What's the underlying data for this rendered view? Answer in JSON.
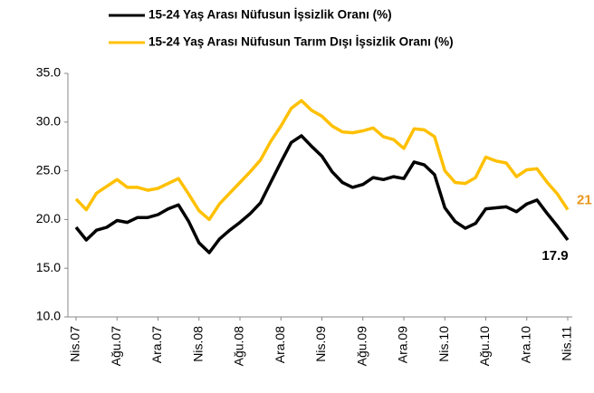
{
  "chart_data": {
    "type": "line",
    "categories": [
      "Nis.07",
      null,
      null,
      null,
      "Ağu.07",
      null,
      null,
      null,
      "Ara.07",
      null,
      null,
      null,
      "Nis.08",
      null,
      null,
      null,
      "Ağu.08",
      null,
      null,
      null,
      "Ara.08",
      null,
      null,
      null,
      "Nis.09",
      null,
      null,
      null,
      "Ağu.09",
      null,
      null,
      null,
      "Ara.09",
      null,
      null,
      null,
      "Nis.10",
      null,
      null,
      null,
      "Ağu.10",
      null,
      null,
      null,
      "Ara.10",
      null,
      null,
      null,
      "Nis.11"
    ],
    "series": [
      {
        "name": "15-24 Yaş Arası Nüfusun İşsizlik Oranı (%)",
        "color": "#000000",
        "label_color": "#000000",
        "values": [
          19.2,
          17.9,
          18.9,
          19.2,
          19.9,
          19.7,
          20.2,
          20.2,
          20.5,
          21.1,
          21.5,
          19.8,
          17.6,
          16.6,
          18.0,
          18.9,
          19.7,
          20.6,
          21.7,
          23.8,
          25.9,
          27.9,
          28.6,
          27.5,
          26.5,
          24.9,
          23.8,
          23.3,
          23.6,
          24.3,
          24.1,
          24.4,
          24.2,
          25.9,
          25.6,
          24.6,
          21.2,
          19.8,
          19.1,
          19.6,
          21.1,
          21.2,
          21.3,
          20.8,
          21.6,
          22.0,
          20.6,
          19.3,
          17.9
        ]
      },
      {
        "name": "15-24 Yaş Arası Nüfusun Tarım Dışı İşsizlik Oranı (%)",
        "color": "#ffc000",
        "label_color": "#e8961c",
        "values": [
          22.1,
          21.0,
          22.7,
          23.4,
          24.1,
          23.3,
          23.3,
          23.0,
          23.2,
          23.7,
          24.2,
          22.6,
          20.9,
          20.0,
          21.6,
          22.7,
          23.8,
          24.9,
          26.1,
          28.0,
          29.6,
          31.4,
          32.2,
          31.2,
          30.6,
          29.6,
          29.0,
          28.9,
          29.1,
          29.4,
          28.5,
          28.2,
          27.3,
          29.3,
          29.2,
          28.5,
          25.0,
          23.8,
          23.7,
          24.3,
          26.4,
          26.0,
          25.8,
          24.4,
          25.1,
          25.2,
          23.8,
          22.6,
          21.0
        ]
      }
    ],
    "ylim": [
      10,
      35
    ],
    "yticks": [
      {
        "value": 10,
        "label": "10.0"
      },
      {
        "value": 15,
        "label": "15.0"
      },
      {
        "value": 20,
        "label": "20.0"
      },
      {
        "value": 25,
        "label": "25.0"
      },
      {
        "value": 30,
        "label": "30.0"
      },
      {
        "value": 35,
        "label": "35.0"
      }
    ],
    "grid": false,
    "legend": "top"
  }
}
